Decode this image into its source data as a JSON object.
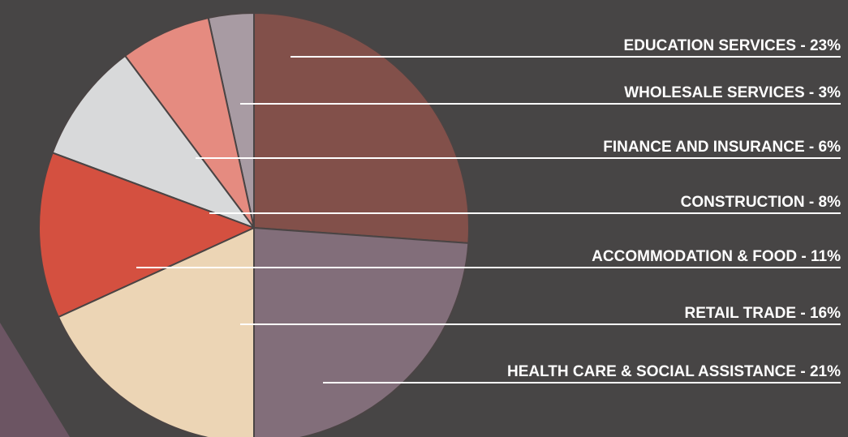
{
  "chart_data": {
    "type": "pie",
    "value_labels": [
      "EDUCATION SERVICES -  23%",
      "WHOLESALE SERVICES -  3%",
      "FINANCE AND INSURANCE -  6%",
      "CONSTRUCTION -  8%",
      "ACCOMMODATION & FOOD -  11%",
      "RETAIL TRADE -  16%",
      "HEALTH CARE & SOCIAL ASSISTANCE -  21%"
    ],
    "values": [
      23,
      3,
      6,
      8,
      11,
      16,
      21
    ],
    "colors": [
      "#82504a",
      "#a89ba3",
      "#e58b80",
      "#d8d9da",
      "#d45040",
      "#ecd5b5",
      "#826e7a"
    ]
  }
}
